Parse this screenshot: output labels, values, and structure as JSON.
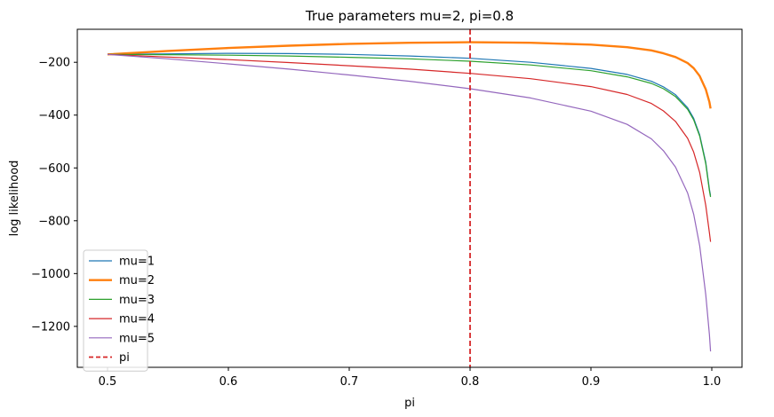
{
  "chart_data": {
    "type": "line",
    "title": "True parameters mu=2, pi=0.8",
    "xlabel": "pi",
    "ylabel": "log likelihood",
    "xlim": [
      0.475,
      1.025
    ],
    "ylim": [
      -1355,
      -75
    ],
    "xticks": [
      {
        "value": 0.5,
        "label": "0.5"
      },
      {
        "value": 0.6,
        "label": "0.6"
      },
      {
        "value": 0.7,
        "label": "0.7"
      },
      {
        "value": 0.8,
        "label": "0.8"
      },
      {
        "value": 0.9,
        "label": "0.9"
      },
      {
        "value": 1.0,
        "label": "1.0"
      }
    ],
    "yticks": [
      {
        "value": -200,
        "label": "−200"
      },
      {
        "value": -400,
        "label": "−400"
      },
      {
        "value": -600,
        "label": "−600"
      },
      {
        "value": -800,
        "label": "−800"
      },
      {
        "value": -1000,
        "label": "−1000"
      },
      {
        "value": -1200,
        "label": "−1200"
      }
    ],
    "grid": false,
    "legend_position": "lower-left",
    "series": [
      {
        "name": "mu=1",
        "color": "#1f77b4",
        "points": [
          [
            0.5,
            -170
          ],
          [
            0.55,
            -168
          ],
          [
            0.6,
            -166
          ],
          [
            0.65,
            -167
          ],
          [
            0.7,
            -170
          ],
          [
            0.75,
            -176
          ],
          [
            0.8,
            -185
          ],
          [
            0.85,
            -200
          ],
          [
            0.9,
            -223
          ],
          [
            0.93,
            -246
          ],
          [
            0.95,
            -272
          ],
          [
            0.96,
            -293
          ],
          [
            0.97,
            -323
          ],
          [
            0.98,
            -372
          ],
          [
            0.985,
            -412
          ],
          [
            0.99,
            -475
          ],
          [
            0.995,
            -578
          ],
          [
            0.998,
            -680
          ],
          [
            0.999,
            -705
          ]
        ]
      },
      {
        "name": "mu=2",
        "color": "#ff7f0e",
        "points": [
          [
            0.5,
            -170
          ],
          [
            0.55,
            -157
          ],
          [
            0.6,
            -146
          ],
          [
            0.65,
            -137
          ],
          [
            0.7,
            -130
          ],
          [
            0.75,
            -126
          ],
          [
            0.8,
            -124
          ],
          [
            0.85,
            -126
          ],
          [
            0.9,
            -133
          ],
          [
            0.93,
            -143
          ],
          [
            0.95,
            -155
          ],
          [
            0.96,
            -166
          ],
          [
            0.97,
            -180
          ],
          [
            0.98,
            -203
          ],
          [
            0.985,
            -222
          ],
          [
            0.99,
            -252
          ],
          [
            0.995,
            -302
          ],
          [
            0.998,
            -350
          ],
          [
            0.999,
            -375
          ]
        ]
      },
      {
        "name": "mu=3",
        "color": "#2ca02c",
        "points": [
          [
            0.5,
            -170
          ],
          [
            0.55,
            -171
          ],
          [
            0.6,
            -173
          ],
          [
            0.65,
            -176
          ],
          [
            0.7,
            -181
          ],
          [
            0.75,
            -187
          ],
          [
            0.8,
            -196
          ],
          [
            0.85,
            -210
          ],
          [
            0.9,
            -232
          ],
          [
            0.93,
            -255
          ],
          [
            0.95,
            -280
          ],
          [
            0.96,
            -300
          ],
          [
            0.97,
            -330
          ],
          [
            0.98,
            -378
          ],
          [
            0.985,
            -418
          ],
          [
            0.99,
            -480
          ],
          [
            0.995,
            -584
          ],
          [
            0.998,
            -686
          ],
          [
            0.999,
            -710
          ]
        ]
      },
      {
        "name": "mu=4",
        "color": "#d62728",
        "points": [
          [
            0.5,
            -170
          ],
          [
            0.55,
            -180
          ],
          [
            0.6,
            -190
          ],
          [
            0.65,
            -201
          ],
          [
            0.7,
            -213
          ],
          [
            0.75,
            -226
          ],
          [
            0.8,
            -242
          ],
          [
            0.85,
            -262
          ],
          [
            0.9,
            -292
          ],
          [
            0.93,
            -322
          ],
          [
            0.95,
            -356
          ],
          [
            0.96,
            -384
          ],
          [
            0.97,
            -424
          ],
          [
            0.98,
            -488
          ],
          [
            0.985,
            -540
          ],
          [
            0.99,
            -618
          ],
          [
            0.995,
            -742
          ],
          [
            0.998,
            -845
          ],
          [
            0.999,
            -880
          ]
        ]
      },
      {
        "name": "mu=5",
        "color": "#9467bd",
        "points": [
          [
            0.5,
            -170
          ],
          [
            0.55,
            -187
          ],
          [
            0.6,
            -206
          ],
          [
            0.65,
            -226
          ],
          [
            0.7,
            -248
          ],
          [
            0.75,
            -272
          ],
          [
            0.8,
            -300
          ],
          [
            0.85,
            -335
          ],
          [
            0.9,
            -385
          ],
          [
            0.93,
            -435
          ],
          [
            0.95,
            -490
          ],
          [
            0.96,
            -535
          ],
          [
            0.97,
            -597
          ],
          [
            0.98,
            -695
          ],
          [
            0.985,
            -775
          ],
          [
            0.99,
            -895
          ],
          [
            0.995,
            -1080
          ],
          [
            0.998,
            -1230
          ],
          [
            0.999,
            -1295
          ]
        ]
      }
    ],
    "reference_line": {
      "name": "pi",
      "x": 0.8,
      "color": "#d62728",
      "style": "dashed"
    }
  }
}
